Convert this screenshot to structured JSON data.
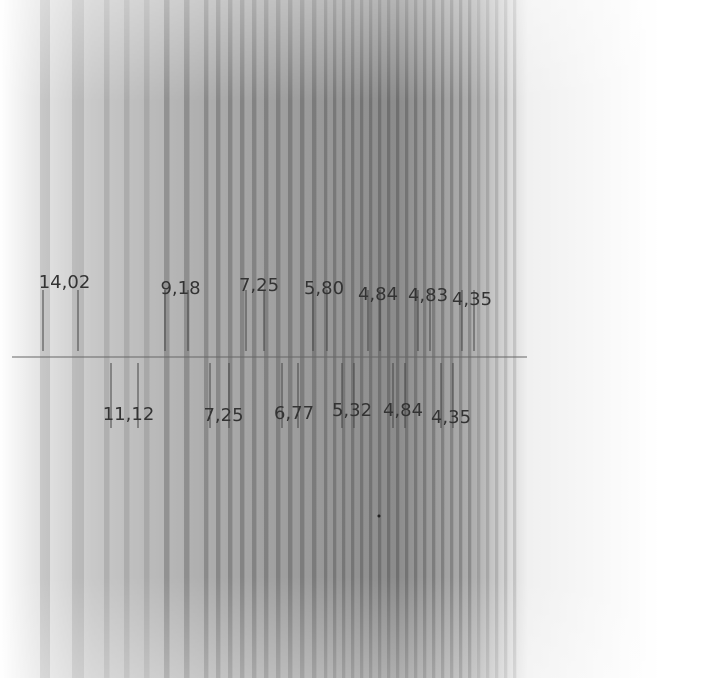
{
  "upper_pairs": [
    {
      "label": "14,02"
    },
    {
      "label": "9,18"
    },
    {
      "label": "7,25"
    },
    {
      "label": "5,80"
    },
    {
      "label": "4,84"
    },
    {
      "label": "4,83"
    },
    {
      "label": "4,35"
    }
  ],
  "lower_pairs": [
    {
      "label": "11,12"
    },
    {
      "label": "7,25"
    },
    {
      "label": "6,77"
    },
    {
      "label": "5,32"
    },
    {
      "label": "4,84"
    },
    {
      "label": "4,35"
    }
  ]
}
